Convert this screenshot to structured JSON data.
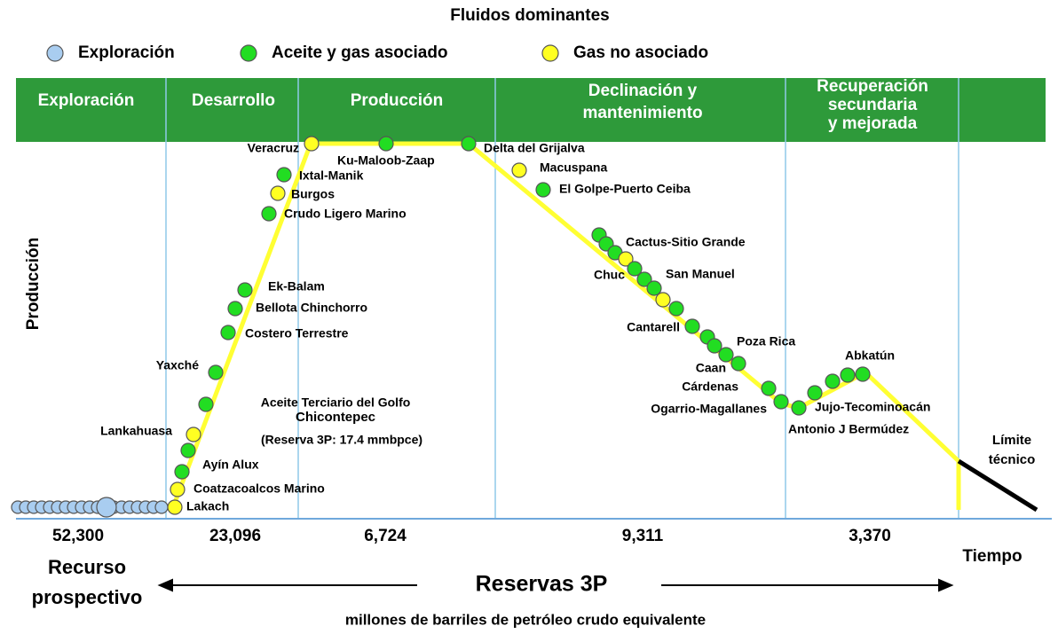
{
  "title": "Fluidos dominantes",
  "legend": [
    "Exploración",
    "Aceite y gas asociado",
    "Gas no asociado"
  ],
  "phases": [
    [
      "Exploración"
    ],
    [
      "Desarrollo"
    ],
    [
      "Producción"
    ],
    [
      "Declinación y",
      "mantenimiento"
    ],
    [
      "Recuperación",
      "secundaria",
      "y mejorada"
    ]
  ],
  "y_axis_label": "Producción",
  "fields": [
    "Veracruz",
    "Ku-Maloob-Zaap",
    "Delta del Grijalva",
    "Macuspana",
    "El Golpe-Puerto Ceiba",
    "Ixtal-Manik",
    "Burgos",
    "Crudo Ligero Marino",
    "Cactus-Sitio Grande",
    "Chuc",
    "San Manuel",
    "Ek-Balam",
    "Bellota Chinchorro",
    "Costero Terrestre",
    "Cantarell",
    "Poza Rica",
    "Yaxché",
    "Caan",
    "Cárdenas",
    "Abkatún",
    "Lankahuasa",
    "Ogarrio-Magallanes",
    "Jujo-Tecominoacán",
    "Antonio J Bermúdez",
    "Ayín Alux",
    "Coatzacoalcos Marino",
    "Lakach"
  ],
  "annotation": [
    "Aceite Terciario del Golfo",
    "Chicontepec",
    "(Reserva 3P:  17.4 mmbpce)"
  ],
  "limit_label": [
    "Límite",
    "técnico"
  ],
  "reserves": [
    "52,300",
    "23,096",
    "6,724",
    "9,311",
    "3,370"
  ],
  "time_label": "Tiempo",
  "prospective_label": [
    "Recurso",
    "prospectivo"
  ],
  "reserves_label": "Reservas 3P",
  "units": "millones de barriles de petróleo crudo equivalente"
}
